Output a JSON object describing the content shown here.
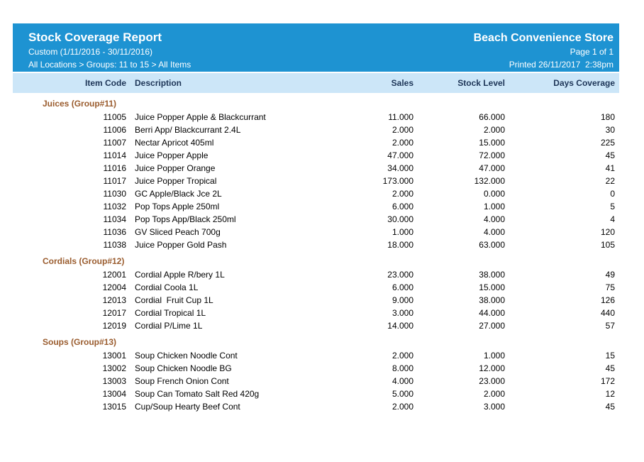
{
  "report": {
    "title": "Stock Coverage Report",
    "store_name": "Beach Convenience Store",
    "date_range": "Custom (1/11/2016 - 30/11/2016)",
    "page_info": "Page 1 of 1",
    "breadcrumb": "All Locations > Groups: 11 to 15 > All Items",
    "printed": "Printed 26/11/2017  2:38pm"
  },
  "colors": {
    "band_bg": "#1E93D2",
    "header_row_bg": "#CCE6F8",
    "header_text": "#1D3557",
    "group_text": "#9A5C2E",
    "body_text": "#000000"
  },
  "table": {
    "columns": [
      "Item Code",
      "Description",
      "Sales",
      "Stock Level",
      "Days Coverage"
    ],
    "groups": [
      {
        "name": "Juices (Group#11)",
        "items": [
          {
            "code": "11005",
            "description": "Juice Popper Apple & Blackcurrant",
            "sales": "11.000",
            "stock_level": "66.000",
            "days_coverage": "180"
          },
          {
            "code": "11006",
            "description": "Berri App/ Blackcurrant 2.4L",
            "sales": "2.000",
            "stock_level": "2.000",
            "days_coverage": "30"
          },
          {
            "code": "11007",
            "description": "Nectar Apricot 405ml",
            "sales": "2.000",
            "stock_level": "15.000",
            "days_coverage": "225"
          },
          {
            "code": "11014",
            "description": "Juice Popper Apple",
            "sales": "47.000",
            "stock_level": "72.000",
            "days_coverage": "45"
          },
          {
            "code": "11016",
            "description": "Juice Popper Orange",
            "sales": "34.000",
            "stock_level": "47.000",
            "days_coverage": "41"
          },
          {
            "code": "11017",
            "description": "Juice Popper Tropical",
            "sales": "173.000",
            "stock_level": "132.000",
            "days_coverage": "22"
          },
          {
            "code": "11030",
            "description": "GC Apple/Black Jce 2L",
            "sales": "2.000",
            "stock_level": "0.000",
            "days_coverage": "0"
          },
          {
            "code": "11032",
            "description": "Pop Tops Apple 250ml",
            "sales": "6.000",
            "stock_level": "1.000",
            "days_coverage": "5"
          },
          {
            "code": "11034",
            "description": "Pop Tops App/Black 250ml",
            "sales": "30.000",
            "stock_level": "4.000",
            "days_coverage": "4"
          },
          {
            "code": "11036",
            "description": "GV Sliced Peach 700g",
            "sales": "1.000",
            "stock_level": "4.000",
            "days_coverage": "120"
          },
          {
            "code": "11038",
            "description": "Juice Popper Gold Pash",
            "sales": "18.000",
            "stock_level": "63.000",
            "days_coverage": "105"
          }
        ]
      },
      {
        "name": "Cordials (Group#12)",
        "items": [
          {
            "code": "12001",
            "description": "Cordial Apple R/bery 1L",
            "sales": "23.000",
            "stock_level": "38.000",
            "days_coverage": "49"
          },
          {
            "code": "12004",
            "description": "Cordial Coola 1L",
            "sales": "6.000",
            "stock_level": "15.000",
            "days_coverage": "75"
          },
          {
            "code": "12013",
            "description": "Cordial  Fruit Cup 1L",
            "sales": "9.000",
            "stock_level": "38.000",
            "days_coverage": "126"
          },
          {
            "code": "12017",
            "description": "Cordial Tropical 1L",
            "sales": "3.000",
            "stock_level": "44.000",
            "days_coverage": "440"
          },
          {
            "code": "12019",
            "description": "Cordial P/Lime 1L",
            "sales": "14.000",
            "stock_level": "27.000",
            "days_coverage": "57"
          }
        ]
      },
      {
        "name": "Soups (Group#13)",
        "items": [
          {
            "code": "13001",
            "description": "Soup Chicken Noodle Cont",
            "sales": "2.000",
            "stock_level": "1.000",
            "days_coverage": "15"
          },
          {
            "code": "13002",
            "description": "Soup Chicken Noodle BG",
            "sales": "8.000",
            "stock_level": "12.000",
            "days_coverage": "45"
          },
          {
            "code": "13003",
            "description": "Soup French Onion Cont",
            "sales": "4.000",
            "stock_level": "23.000",
            "days_coverage": "172"
          },
          {
            "code": "13004",
            "description": "Soup Can Tomato Salt Red 420g",
            "sales": "5.000",
            "stock_level": "2.000",
            "days_coverage": "12"
          },
          {
            "code": "13015",
            "description": "Cup/Soup Hearty Beef Cont",
            "sales": "2.000",
            "stock_level": "3.000",
            "days_coverage": "45"
          }
        ]
      }
    ]
  }
}
